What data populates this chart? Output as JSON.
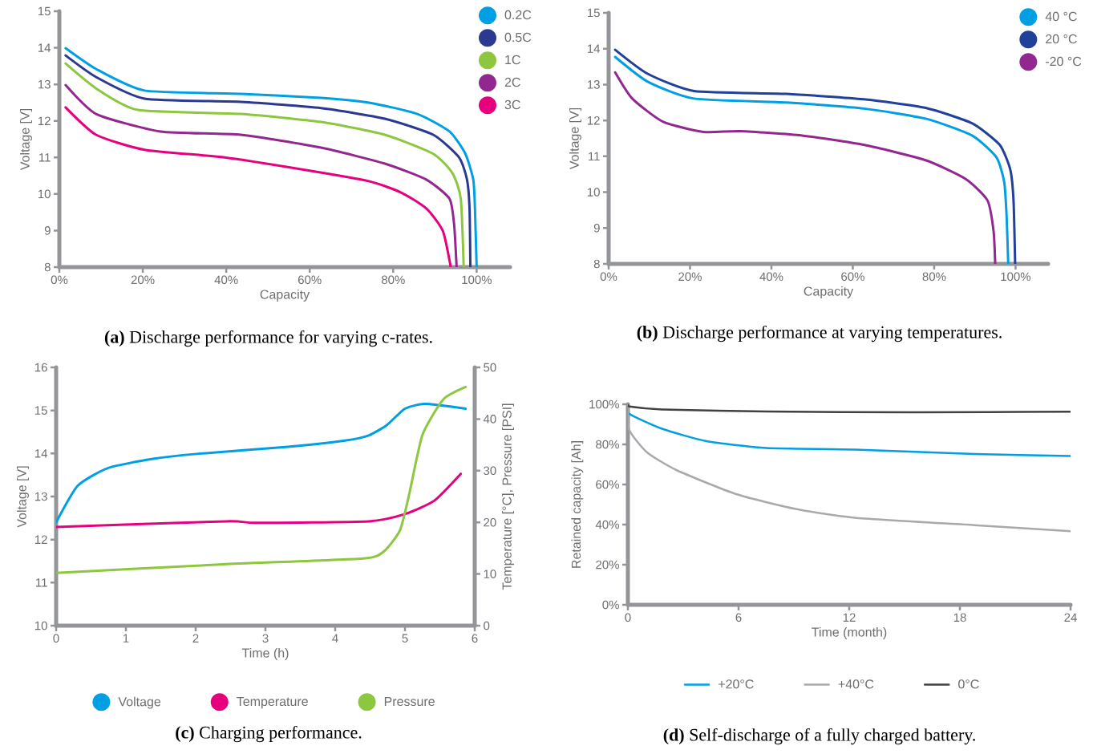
{
  "chart_data": [
    {
      "type": "line",
      "title": "**(a)** Discharge performance for varying c-rates.",
      "xlabel": "Capacity",
      "ylabel": "Voltage [V]",
      "xlim": [
        0,
        108
      ],
      "ylim": [
        8,
        15
      ],
      "xticks": [
        {
          "value": 0,
          "label": "0%"
        },
        {
          "value": 20,
          "label": "20%"
        },
        {
          "value": 40,
          "label": "40%"
        },
        {
          "value": 60,
          "label": "60%"
        },
        {
          "value": 80,
          "label": "80%"
        },
        {
          "value": 100,
          "label": "100%"
        }
      ],
      "yticks": [
        8,
        9,
        10,
        11,
        12,
        13,
        14,
        15
      ],
      "legend": "top right",
      "series": [
        {
          "name": "0.2C",
          "color": "#009fe3",
          "x": [
            1.5,
            8.8,
            20.4,
            43.5,
            62.7,
            74.2,
            85.8,
            93.5,
            97.3,
            99.2,
            99.6,
            100
          ],
          "values": [
            13.99,
            13.42,
            12.83,
            12.74,
            12.63,
            12.5,
            12.19,
            11.71,
            11.1,
            10.39,
            9.6,
            8
          ]
        },
        {
          "name": "0.5C",
          "color": "#2b3990",
          "x": [
            1.5,
            8.8,
            20.4,
            43.5,
            62.7,
            78,
            89.6,
            95.8,
            97.7,
            98.3,
            98.5
          ],
          "values": [
            13.79,
            13.2,
            12.61,
            12.52,
            12.35,
            12.06,
            11.62,
            11.0,
            10.39,
            9.6,
            8
          ]
        },
        {
          "name": "1C",
          "color": "#8dc63f",
          "x": [
            1.5,
            8.8,
            18.8,
            43.5,
            62.7,
            78,
            89.6,
            94.2,
            96.2,
            96.9
          ],
          "values": [
            13.57,
            12.89,
            12.3,
            12.19,
            11.97,
            11.62,
            11.1,
            10.57,
            9.87,
            8
          ]
        },
        {
          "name": "2C",
          "color": "#92278f",
          "x": [
            1.5,
            8.8,
            24.2,
            43.5,
            62.7,
            78,
            88,
            93.5,
            94.6,
            95.2
          ],
          "values": [
            12.98,
            12.19,
            11.71,
            11.62,
            11.27,
            10.83,
            10.39,
            9.87,
            9.17,
            8
          ]
        },
        {
          "name": "3C",
          "color": "#e6007e",
          "x": [
            1.5,
            8.8,
            20.4,
            39.6,
            58.8,
            74.2,
            81.9,
            88,
            91.9,
            93.8
          ],
          "values": [
            12.37,
            11.62,
            11.21,
            11.0,
            10.66,
            10.35,
            10.04,
            9.6,
            8.99,
            8
          ]
        }
      ]
    },
    {
      "type": "line",
      "title": "**(b)** Discharge performance at varying temperatures.",
      "xlabel": "Capacity",
      "ylabel": "Voltage [V]",
      "xlim": [
        0,
        108
      ],
      "ylim": [
        8,
        15
      ],
      "xticks": [
        {
          "value": 0,
          "label": "0%"
        },
        {
          "value": 20,
          "label": "20%"
        },
        {
          "value": 40,
          "label": "40%"
        },
        {
          "value": 60,
          "label": "60%"
        },
        {
          "value": 80,
          "label": "80%"
        },
        {
          "value": 100,
          "label": "100%"
        }
      ],
      "yticks": [
        8,
        9,
        10,
        11,
        12,
        13,
        14,
        15
      ],
      "legend": "top right",
      "series": [
        {
          "name": "40 °C",
          "color": "#009fe3",
          "x": [
            1.6,
            9.6,
            21,
            43.7,
            62.7,
            77.9,
            89.3,
            95.3,
            97.2,
            97.8,
            98.2
          ],
          "values": [
            13.77,
            13.08,
            12.61,
            12.5,
            12.33,
            12.05,
            11.58,
            10.97,
            10.29,
            9.34,
            8
          ]
        },
        {
          "name": "20 °C",
          "color": "#21409a",
          "x": [
            1.6,
            9.6,
            21,
            43.7,
            62.7,
            77.9,
            89.3,
            96.1,
            98.7,
            99.5,
            99.9
          ],
          "values": [
            13.97,
            13.3,
            12.82,
            12.74,
            12.59,
            12.35,
            11.92,
            11.32,
            10.63,
            9.77,
            8
          ]
        },
        {
          "name": "-20 °C",
          "color": "#92278f",
          "x": [
            1.6,
            5.8,
            13.4,
            23.3,
            32.4,
            47.5,
            62.7,
            77.9,
            87.7,
            93.1,
            94.6,
            95
          ],
          "values": [
            13.34,
            12.61,
            11.96,
            11.68,
            11.7,
            11.58,
            11.32,
            10.89,
            10.37,
            9.77,
            8.91,
            8
          ]
        }
      ]
    },
    {
      "type": "line",
      "title": "**(c)** Charging performance.",
      "xlabel": "Time (h)",
      "ylabel": "Voltage [V]",
      "y2label": "Temperature [°C], Pressure [PSI]",
      "xlim": [
        0,
        6
      ],
      "ylim": [
        10,
        16
      ],
      "y2lim": [
        0,
        50
      ],
      "xticks": [
        0,
        1,
        2,
        3,
        4,
        5,
        6
      ],
      "yticks": [
        10,
        11,
        12,
        13,
        14,
        15,
        16
      ],
      "y2ticks": [
        0,
        10,
        20,
        30,
        40,
        50
      ],
      "legend": "bottom",
      "series": [
        {
          "name": "Voltage",
          "color": "#009fe3",
          "x": [
            0,
            0.31,
            0.74,
            1.37,
            2.01,
            3.29,
            4.14,
            4.48,
            4.74,
            5.0,
            5.29,
            5.87
          ],
          "values": [
            12.4,
            13.25,
            13.66,
            13.87,
            13.99,
            14.15,
            14.3,
            14.42,
            14.66,
            15.04,
            15.15,
            15.04
          ]
        },
        {
          "name": "Temperature",
          "color": "#e6007e",
          "axis": "y2",
          "x": [
            0,
            2.44,
            2.86,
            4.48,
            5.0,
            5.42,
            5.8
          ],
          "values": [
            19.1,
            20.2,
            19.9,
            20.2,
            21.6,
            24.2,
            29.4
          ]
        },
        {
          "name": "Pressure",
          "color": "#8dc63f",
          "axis": "y2",
          "x": [
            0,
            2.44,
            4.4,
            4.7,
            4.93,
            5.06,
            5.25,
            5.55,
            5.87
          ],
          "values": [
            10.2,
            11.9,
            13.0,
            14.4,
            18.5,
            25.4,
            36.9,
            43.8,
            46.2
          ]
        }
      ]
    },
    {
      "type": "line",
      "title": "**(d)** Self-discharge of a fully charged battery.",
      "xlabel": "Time (month)",
      "ylabel": "Retained capacity [Ah]",
      "xlim": [
        0,
        24
      ],
      "ylim": [
        0,
        100
      ],
      "xticks": [
        0,
        6,
        12,
        18,
        24
      ],
      "yticks": [
        {
          "value": 0,
          "label": "0%"
        },
        {
          "value": 20,
          "label": "20%"
        },
        {
          "value": 40,
          "label": "40%"
        },
        {
          "value": 60,
          "label": "60%"
        },
        {
          "value": 80,
          "label": "80%"
        },
        {
          "value": 100,
          "label": "100%"
        }
      ],
      "legend": "bottom",
      "series": [
        {
          "name": "+20°C",
          "color": "#009fe3",
          "x": [
            0,
            0.08,
            1.85,
            4.26,
            7.5,
            12.3,
            18.8,
            24
          ],
          "values": [
            100,
            95.2,
            87.8,
            81.6,
            78.2,
            77.4,
            75.2,
            74.2
          ]
        },
        {
          "name": "+40°C",
          "color": "#a7a9ac",
          "x": [
            0,
            0.08,
            1.04,
            2.65,
            5.87,
            9.1,
            12.3,
            18.8,
            24
          ],
          "values": [
            100,
            87.1,
            76,
            67.1,
            55.2,
            47.8,
            43.4,
            39.7,
            36.7
          ]
        },
        {
          "name": "0°C",
          "color": "#414042",
          "x": [
            0,
            0.08,
            1.85,
            7.5,
            15.5,
            24
          ],
          "values": [
            100,
            98.9,
            97.4,
            96.4,
            96,
            96.3
          ]
        }
      ]
    }
  ]
}
